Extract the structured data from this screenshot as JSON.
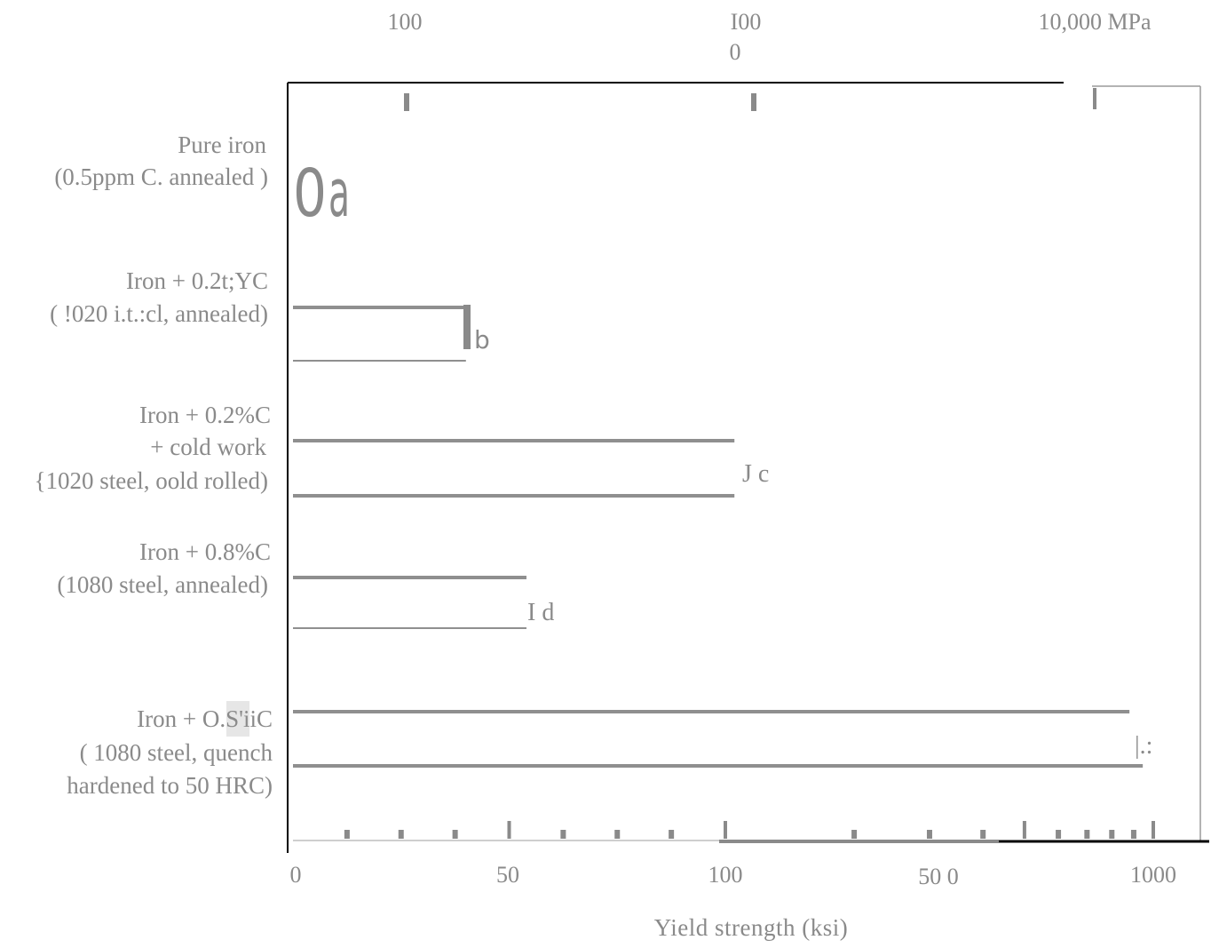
{
  "chart_data": {
    "type": "bar",
    "orientation": "horizontal",
    "xlabel": "Yield strength (ksi)",
    "top_axis": {
      "unit": "MPa",
      "ticks": [
        {
          "value": 100,
          "label": "100"
        },
        {
          "value": 1000,
          "label_line1": "I00",
          "label_line2": "0"
        },
        {
          "value": 10000,
          "label": "10,000 MPa"
        }
      ]
    },
    "bottom_axis": {
      "ticks": [
        {
          "value": 0,
          "label": "0"
        },
        {
          "value": 50,
          "label": "50"
        },
        {
          "value": 100,
          "label": "100"
        },
        {
          "value": 500,
          "label": "50 0"
        },
        {
          "value": 1000,
          "label": "1000"
        }
      ]
    },
    "categories": [
      {
        "line1": "Pure iron",
        "line2": "(0.5ppm C. annealed )",
        "marker": "a"
      },
      {
        "line1": "Iron + 0.2t;YC",
        "line2": "( !020 i.t.:cl, annealed)",
        "marker": "b"
      },
      {
        "line1": "Iron + 0.2%C",
        "line2": "+ cold work",
        "line3": "{1020 steel, oold rolled)",
        "marker": "c"
      },
      {
        "line1": "Iron + 0.8%C",
        "line2": "(1080 steel, annealed)",
        "marker": "d"
      },
      {
        "line1": "Iron + O.S'iiC",
        "line2": "( 1080 steel, quench",
        "line3": "hardened to 50 HRC)",
        "marker": "|.:"
      }
    ],
    "series": [
      {
        "values": [
          1.5,
          40,
          105,
          54,
          945
        ]
      }
    ],
    "grid": false,
    "legend": "none"
  },
  "markers": {
    "a_prefix": "0",
    "a": "a",
    "b": "b",
    "c": "J c",
    "d": "I d",
    "e": "|.:"
  }
}
